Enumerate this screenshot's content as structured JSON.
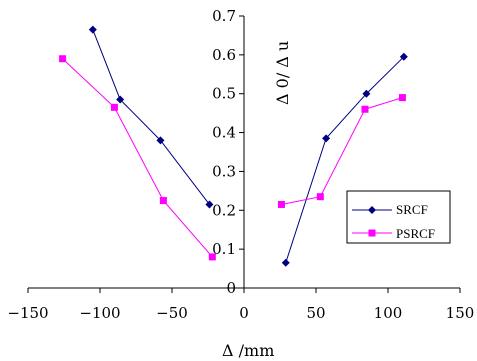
{
  "chart_data": {
    "type": "line",
    "xlabel": "Δ /mm",
    "ylabel": "Δ 0/ Δ u",
    "xlim": [
      -150,
      150
    ],
    "ylim": [
      0,
      0.7
    ],
    "xticks": [
      "-150",
      "-100",
      "-50",
      "0",
      "50",
      "100",
      "150"
    ],
    "yticks": [
      "0",
      "0.1",
      "0.2",
      "0.3",
      "0.4",
      "0.5",
      "0.6",
      "0.7"
    ],
    "grid": false,
    "legend_position": "right",
    "series": [
      {
        "name": "SRCF",
        "color": "#000080",
        "marker": "diamond",
        "segments": [
          [
            [
              -105,
              0.665
            ],
            [
              -86,
              0.485
            ],
            [
              -58,
              0.38
            ],
            [
              -24,
              0.215
            ]
          ],
          [
            [
              29,
              0.065
            ],
            [
              57,
              0.385
            ],
            [
              85,
              0.5
            ],
            [
              111,
              0.595
            ]
          ]
        ]
      },
      {
        "name": "PSRCF",
        "color": "#ff00ff",
        "marker": "square",
        "segments": [
          [
            [
              -126,
              0.59
            ],
            [
              -90,
              0.465
            ],
            [
              -56,
              0.225
            ],
            [
              -22,
              0.08
            ]
          ],
          [
            [
              26,
              0.215
            ],
            [
              53,
              0.235
            ],
            [
              84,
              0.46
            ],
            [
              110,
              0.49
            ]
          ]
        ]
      }
    ]
  }
}
